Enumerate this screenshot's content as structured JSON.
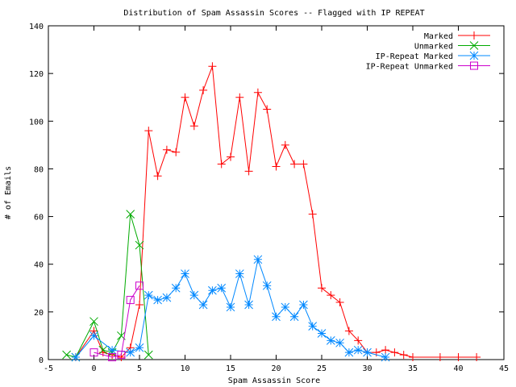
{
  "chart_data": {
    "type": "line",
    "title": "Distribution of Spam Assassin Scores -- Flagged with IP REPEAT",
    "xlabel": "Spam Assassin Score",
    "ylabel": "# of Emails",
    "xlim": [
      -5,
      45
    ],
    "ylim": [
      0,
      140
    ],
    "xticks": [
      -5,
      0,
      5,
      10,
      15,
      20,
      25,
      30,
      35,
      40,
      45
    ],
    "yticks": [
      0,
      20,
      40,
      60,
      80,
      100,
      120,
      140
    ],
    "grid": false,
    "legend_position": "top-right",
    "series": [
      {
        "name": "Marked",
        "color": "#ff0000",
        "marker": "plus",
        "points": [
          [
            -2,
            1
          ],
          [
            0,
            12
          ],
          [
            1,
            3
          ],
          [
            2,
            2
          ],
          [
            3,
            1
          ],
          [
            4,
            5
          ],
          [
            5,
            23
          ],
          [
            6,
            96
          ],
          [
            7,
            77
          ],
          [
            8,
            88
          ],
          [
            9,
            87
          ],
          [
            10,
            110
          ],
          [
            11,
            98
          ],
          [
            12,
            113
          ],
          [
            13,
            123
          ],
          [
            14,
            82
          ],
          [
            15,
            85
          ],
          [
            16,
            110
          ],
          [
            17,
            79
          ],
          [
            18,
            112
          ],
          [
            19,
            105
          ],
          [
            20,
            81
          ],
          [
            21,
            90
          ],
          [
            22,
            82
          ],
          [
            23,
            82
          ],
          [
            24,
            61
          ],
          [
            25,
            30
          ],
          [
            26,
            27
          ],
          [
            27,
            24
          ],
          [
            28,
            12
          ],
          [
            29,
            8
          ],
          [
            30,
            3
          ],
          [
            31,
            3
          ],
          [
            32,
            4
          ],
          [
            33,
            3
          ],
          [
            34,
            2
          ],
          [
            35,
            1
          ],
          [
            38,
            1
          ],
          [
            40,
            1
          ],
          [
            42,
            1
          ]
        ]
      },
      {
        "name": "Unmarked",
        "color": "#00aa00",
        "marker": "x",
        "points": [
          [
            -3,
            2
          ],
          [
            -2,
            1
          ],
          [
            0,
            16
          ],
          [
            1,
            4
          ],
          [
            2,
            3
          ],
          [
            3,
            10
          ],
          [
            4,
            61
          ],
          [
            5,
            48
          ],
          [
            6,
            2
          ]
        ]
      },
      {
        "name": "IP-Repeat Marked",
        "color": "#0088ff",
        "marker": "star",
        "points": [
          [
            -2,
            1
          ],
          [
            0,
            10
          ],
          [
            2,
            4
          ],
          [
            4,
            3
          ],
          [
            5,
            5
          ],
          [
            6,
            27
          ],
          [
            7,
            25
          ],
          [
            8,
            26
          ],
          [
            9,
            30
          ],
          [
            10,
            36
          ],
          [
            11,
            27
          ],
          [
            12,
            23
          ],
          [
            13,
            29
          ],
          [
            14,
            30
          ],
          [
            15,
            22
          ],
          [
            16,
            36
          ],
          [
            17,
            23
          ],
          [
            18,
            42
          ],
          [
            19,
            31
          ],
          [
            20,
            18
          ],
          [
            21,
            22
          ],
          [
            22,
            18
          ],
          [
            23,
            23
          ],
          [
            24,
            14
          ],
          [
            25,
            11
          ],
          [
            26,
            8
          ],
          [
            27,
            7
          ],
          [
            28,
            3
          ],
          [
            29,
            4
          ],
          [
            30,
            3
          ],
          [
            32,
            1
          ]
        ]
      },
      {
        "name": "IP-Repeat Unmarked",
        "color": "#cc00cc",
        "marker": "square",
        "points": [
          [
            0,
            3
          ],
          [
            2,
            1
          ],
          [
            3,
            2
          ],
          [
            4,
            25
          ],
          [
            5,
            31
          ]
        ]
      }
    ]
  }
}
